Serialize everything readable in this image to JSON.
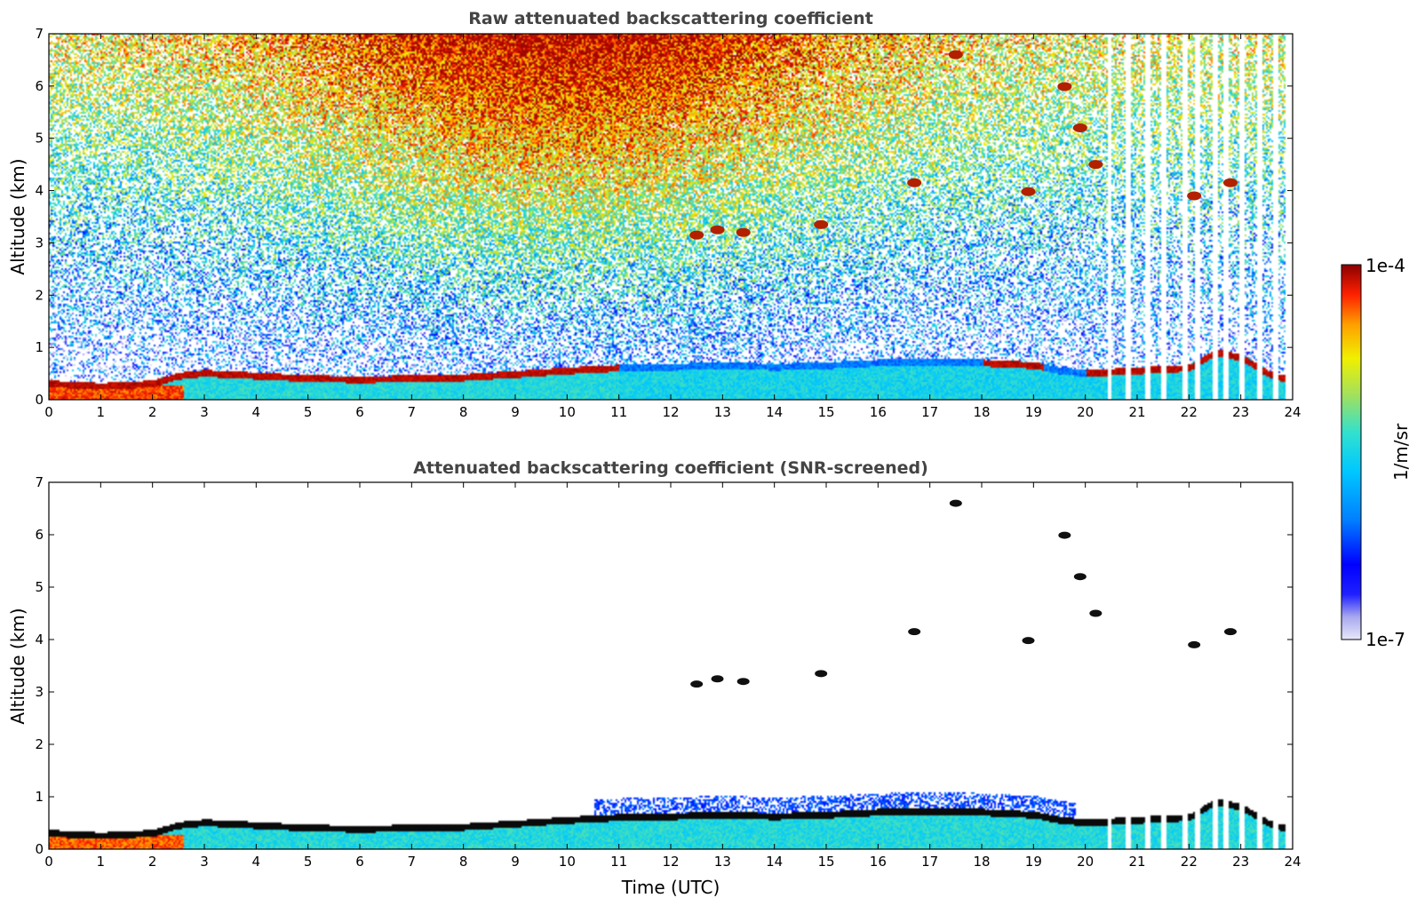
{
  "chart_data": [
    {
      "type": "heatmap",
      "title": "Raw attenuated backscattering coefficient",
      "xlabel": "",
      "ylabel": "Altitude (km)",
      "xlim": [
        0,
        24
      ],
      "ylim": [
        0,
        7
      ],
      "xticks": [
        "0",
        "1",
        "2",
        "3",
        "4",
        "5",
        "6",
        "7",
        "8",
        "9",
        "10",
        "11",
        "12",
        "13",
        "14",
        "15",
        "16",
        "17",
        "18",
        "19",
        "20",
        "21",
        "22",
        "23",
        "24"
      ],
      "yticks": [
        "0",
        "1",
        "2",
        "3",
        "4",
        "5",
        "6",
        "7"
      ],
      "boundary_layer_top_km": [
        [
          0,
          0.3
        ],
        [
          1,
          0.25
        ],
        [
          2,
          0.3
        ],
        [
          2.5,
          0.45
        ],
        [
          3,
          0.5
        ],
        [
          4,
          0.45
        ],
        [
          5,
          0.4
        ],
        [
          6,
          0.38
        ],
        [
          7,
          0.4
        ],
        [
          8,
          0.42
        ],
        [
          9,
          0.48
        ],
        [
          10,
          0.55
        ],
        [
          11,
          0.6
        ],
        [
          12,
          0.62
        ],
        [
          13,
          0.65
        ],
        [
          14,
          0.62
        ],
        [
          15,
          0.65
        ],
        [
          16,
          0.7
        ],
        [
          17,
          0.72
        ],
        [
          18,
          0.7
        ],
        [
          19,
          0.65
        ],
        [
          19.5,
          0.55
        ],
        [
          20,
          0.5
        ],
        [
          21,
          0.55
        ],
        [
          22,
          0.6
        ],
        [
          22.5,
          0.9
        ],
        [
          23,
          0.8
        ],
        [
          23.5,
          0.5
        ],
        [
          23.8,
          0.4
        ]
      ],
      "cloud_patches": [
        {
          "t": 12.5,
          "alt_km": 3.15
        },
        {
          "t": 12.9,
          "alt_km": 3.25
        },
        {
          "t": 13.4,
          "alt_km": 3.2
        },
        {
          "t": 14.9,
          "alt_km": 3.35
        },
        {
          "t": 16.7,
          "alt_km": 4.15
        },
        {
          "t": 17.5,
          "alt_km": 6.6
        },
        {
          "t": 18.9,
          "alt_km": 3.98
        },
        {
          "t": 19.6,
          "alt_km": 5.99
        },
        {
          "t": 19.9,
          "alt_km": 5.2
        },
        {
          "t": 20.2,
          "alt_km": 4.5
        },
        {
          "t": 22.1,
          "alt_km": 3.9
        },
        {
          "t": 22.8,
          "alt_km": 4.15
        }
      ],
      "missing_profiles_utc": [
        20.45,
        20.8,
        21.2,
        21.5,
        21.9,
        22.15,
        22.5,
        22.7,
        23.0,
        23.35,
        23.65
      ]
    },
    {
      "type": "heatmap",
      "title": "Attenuated backscattering coefficient (SNR-screened)",
      "xlabel": "Time (UTC)",
      "ylabel": "Altitude (km)",
      "xlim": [
        0,
        24
      ],
      "ylim": [
        0,
        7
      ],
      "xticks": [
        "0",
        "1",
        "2",
        "3",
        "4",
        "5",
        "6",
        "7",
        "8",
        "9",
        "10",
        "11",
        "12",
        "13",
        "14",
        "15",
        "16",
        "17",
        "18",
        "19",
        "20",
        "21",
        "22",
        "23",
        "24"
      ],
      "yticks": [
        "0",
        "1",
        "2",
        "3",
        "4",
        "5",
        "6",
        "7"
      ]
    }
  ],
  "colorbar": {
    "label": "1/m/sr",
    "max_label": "1e-4",
    "min_label": "1e-7",
    "scale": "log",
    "colormap": [
      "#e8e8f8",
      "#b0b0f0",
      "#0000ff",
      "#0080ff",
      "#00c8ff",
      "#40e0c0",
      "#a0e060",
      "#f0f000",
      "#ffa000",
      "#ff2000",
      "#8b0000"
    ]
  }
}
